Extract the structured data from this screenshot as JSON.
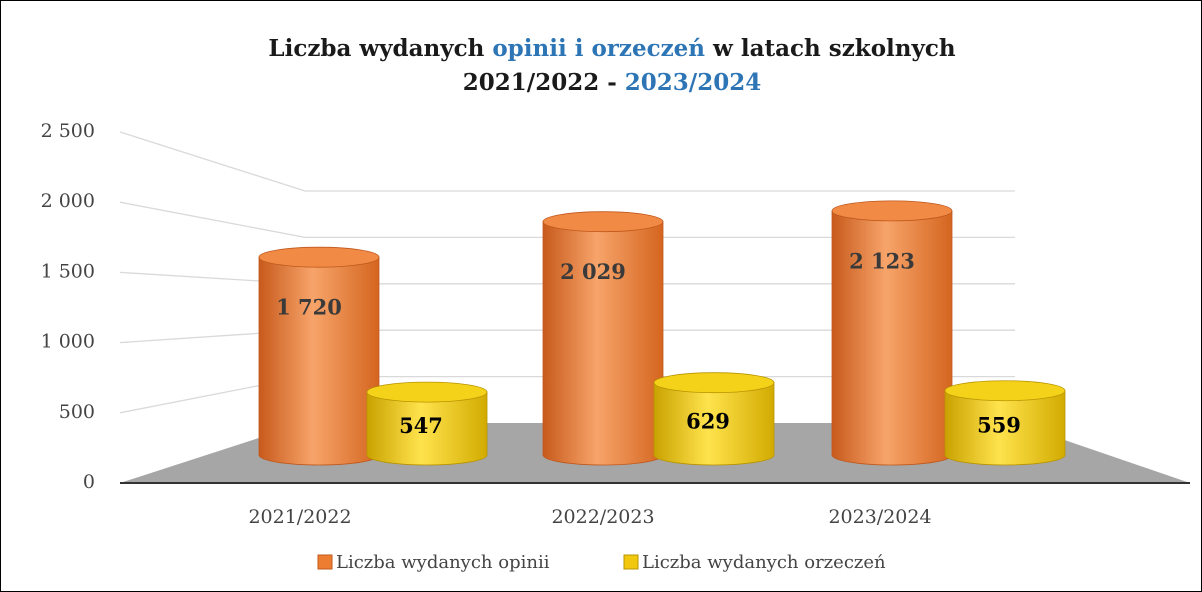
{
  "chart_data": {
    "type": "bar3d",
    "title": [
      [
        {
          "text": "Liczba wydanych ",
          "color": "#1a1a1a"
        },
        {
          "text": "opinii i orzeczeń",
          "color": "#2E75B6"
        },
        {
          "text": " w latach szkolnych",
          "color": "#1a1a1a"
        }
      ],
      [
        {
          "text": "2021/2022 - ",
          "color": "#1a1a1a"
        },
        {
          "text": "2023/2024",
          "color": "#2E75B6"
        }
      ]
    ],
    "categories": [
      "2021/2022",
      "2022/2023",
      "2023/2024"
    ],
    "series": [
      {
        "name": "Liczba wydanych opinii",
        "color": "#ED7D31",
        "values": [
          1720,
          2029,
          2123
        ],
        "value_labels": [
          "1 720",
          "2 029",
          "2 123"
        ]
      },
      {
        "name": "Liczba wydanych orzeczeń",
        "color": "#F2C80F",
        "values": [
          547,
          629,
          559
        ]
      }
    ],
    "ylim": [
      0,
      2500
    ],
    "yticks": [
      0,
      500,
      {
        "value": 1000,
        "label": "1 000"
      },
      {
        "value": 1500,
        "label": "1 500"
      },
      {
        "value": 2000,
        "label": "2 000"
      },
      {
        "value": 2500,
        "label": "2 500"
      }
    ],
    "grid": true,
    "legend": "bottom"
  }
}
